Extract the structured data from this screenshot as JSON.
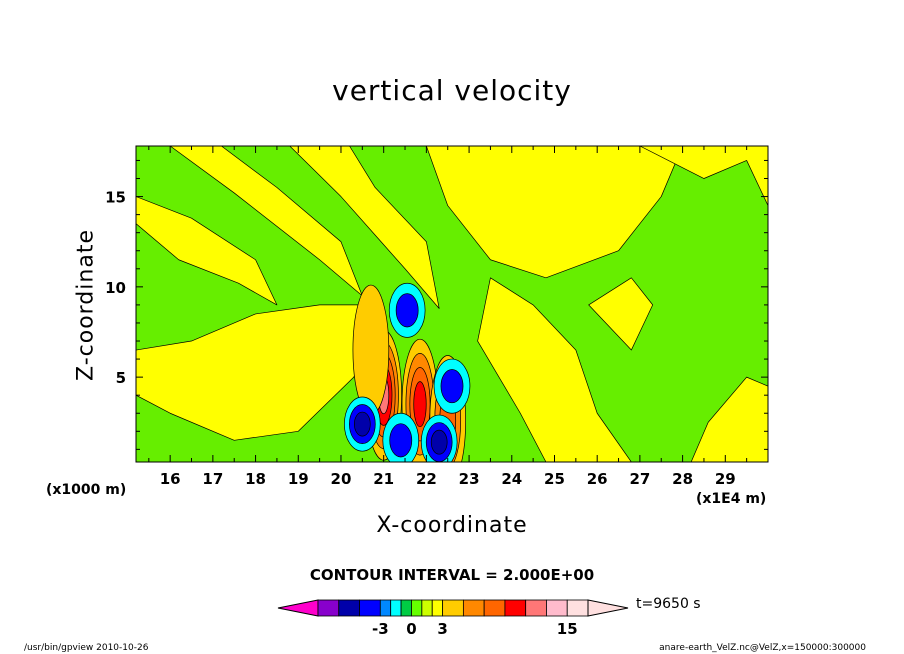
{
  "chart_data": {
    "type": "heatmap",
    "title": "vertical velocity",
    "xlabel": "X-coordinate",
    "ylabel": "Z-coordinate",
    "x_unit_label": "(x1E4 m)",
    "y_unit_label": "(x1000 m)",
    "xlim": [
      15.2,
      30.0
    ],
    "ylim": [
      0.3,
      17.8
    ],
    "x_ticks": [
      16,
      17,
      18,
      19,
      20,
      21,
      22,
      23,
      24,
      25,
      26,
      27,
      28,
      29
    ],
    "y_ticks": [
      5,
      10,
      15
    ],
    "contour_interval_text": "CONTOUR INTERVAL = 2.000E+00",
    "time_label": "t=9650 s",
    "colorbar": {
      "levels": [
        -9,
        -7,
        -5,
        -3,
        -2,
        -1,
        0,
        1,
        2,
        3,
        5,
        7,
        9,
        11,
        13,
        15,
        17
      ],
      "tick_labels": [
        "-3",
        "0",
        "3",
        "15"
      ],
      "tick_values": [
        -3,
        0,
        3,
        15
      ],
      "colors": [
        "#ff00cc",
        "#8800cc",
        "#0000aa",
        "#0000ff",
        "#0088ff",
        "#00ffff",
        "#00cc44",
        "#66ff00",
        "#ccff00",
        "#ffff00",
        "#ffcc00",
        "#ff8800",
        "#ff6600",
        "#ff0000",
        "#ff7777",
        "#ffbbcc",
        "#ffe0e0"
      ]
    },
    "background_color": "#66ee00",
    "features": [
      {
        "kind": "updraft",
        "x": 21.0,
        "z": 4.0,
        "max": 11
      },
      {
        "kind": "updraft",
        "x": 21.85,
        "z": 3.5,
        "max": 9
      },
      {
        "kind": "updraft",
        "x": 22.5,
        "z": 2.6,
        "max": 7
      },
      {
        "kind": "updraft",
        "x": 20.7,
        "z": 6.5,
        "max": 3
      },
      {
        "kind": "downdraft",
        "x": 20.5,
        "z": 2.4,
        "min": -5
      },
      {
        "kind": "downdraft",
        "x": 21.4,
        "z": 1.5,
        "min": -3
      },
      {
        "kind": "downdraft",
        "x": 21.55,
        "z": 8.7,
        "min": -3
      },
      {
        "kind": "downdraft",
        "x": 22.6,
        "z": 4.5,
        "min": -3
      },
      {
        "kind": "downdraft",
        "x": 22.3,
        "z": 1.4,
        "min": -5
      }
    ]
  },
  "footer": {
    "left": "/usr/bin/gpview   2010-10-26",
    "right": "anare-earth_VelZ.nc@VelZ,x=150000:300000"
  }
}
